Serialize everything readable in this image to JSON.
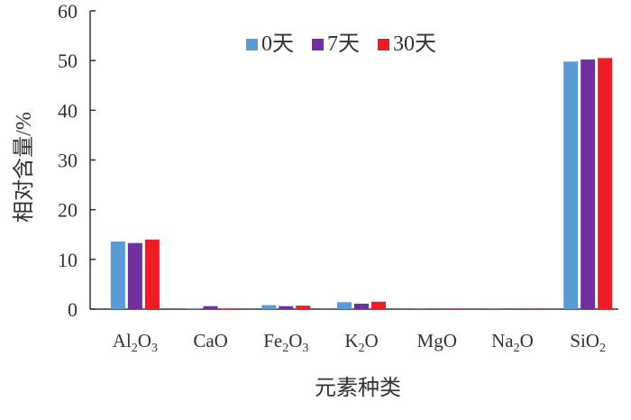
{
  "chart_data": {
    "type": "bar",
    "categories": [
      {
        "base": "Al",
        "sub1": "2",
        "mid": "O",
        "sub2": "3"
      },
      {
        "base": "CaO",
        "sub1": "",
        "mid": "",
        "sub2": ""
      },
      {
        "base": "Fe",
        "sub1": "2",
        "mid": "O",
        "sub2": "3"
      },
      {
        "base": "K",
        "sub1": "2",
        "mid": "O",
        "sub2": ""
      },
      {
        "base": "MgO",
        "sub1": "",
        "mid": "",
        "sub2": ""
      },
      {
        "base": "Na",
        "sub1": "2",
        "mid": "O",
        "sub2": ""
      },
      {
        "base": "SiO",
        "sub1": "2",
        "mid": "",
        "sub2": ""
      }
    ],
    "series": [
      {
        "name": "0天",
        "color": "#5b9bd5",
        "values": [
          13.6,
          0.1,
          0.8,
          1.4,
          0.05,
          0.05,
          49.8
        ]
      },
      {
        "name": "7天",
        "color": "#7030a0",
        "values": [
          13.3,
          0.6,
          0.6,
          1.1,
          0.05,
          0.05,
          50.2
        ]
      },
      {
        "name": "30天",
        "color": "#ee1c25",
        "values": [
          14.0,
          0.1,
          0.7,
          1.5,
          0.05,
          0.05,
          50.5
        ]
      }
    ],
    "xlabel": "元素种类",
    "ylabel": "相对含量/%",
    "ylim": [
      0,
      60
    ],
    "yticks": [
      0,
      10,
      20,
      30,
      40,
      50,
      60
    ],
    "grid": false,
    "legend_position": "top-center"
  }
}
